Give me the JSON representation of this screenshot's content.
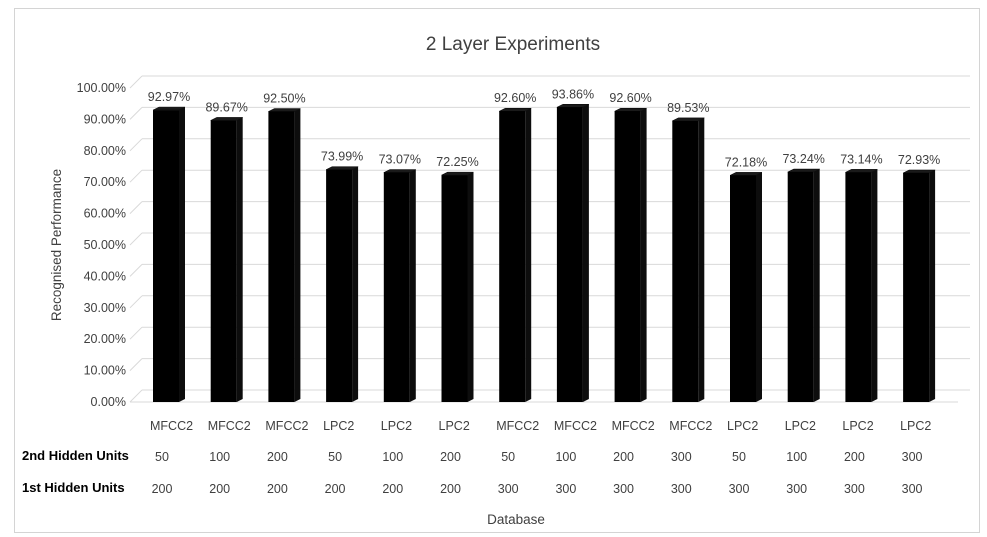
{
  "chart_data": {
    "type": "bar",
    "title": "2 Layer Experiments",
    "ylabel": "Recognised Performance",
    "xlabel": "Database",
    "ylim": [
      0,
      100
    ],
    "yticks": [
      "0.00%",
      "10.00%",
      "20.00%",
      "30.00%",
      "40.00%",
      "50.00%",
      "60.00%",
      "70.00%",
      "80.00%",
      "90.00%",
      "100.00%"
    ],
    "categories": [
      "MFCC2",
      "MFCC2",
      "MFCC2",
      "LPC2",
      "LPC2",
      "LPC2",
      "MFCC2",
      "MFCC2",
      "MFCC2",
      "MFCC2",
      "LPC2",
      "LPC2",
      "LPC2",
      "LPC2"
    ],
    "values": [
      92.97,
      89.67,
      92.5,
      73.99,
      73.07,
      72.25,
      92.6,
      93.86,
      92.6,
      89.53,
      72.18,
      73.24,
      73.14,
      72.93
    ],
    "data_labels": [
      "92.97%",
      "89.67%",
      "92.50%",
      "73.99%",
      "73.07%",
      "72.25%",
      "92.60%",
      "93.86%",
      "92.60%",
      "89.53%",
      "72.18%",
      "73.24%",
      "73.14%",
      "72.93%"
    ],
    "second_hidden_units_label": "2nd Hidden Units",
    "second_hidden_units": [
      "50",
      "100",
      "200",
      "50",
      "100",
      "200",
      "50",
      "100",
      "200",
      "300",
      "50",
      "100",
      "200",
      "300"
    ],
    "first_hidden_units_label": "1st Hidden Units",
    "first_hidden_units": [
      "200",
      "200",
      "200",
      "200",
      "200",
      "200",
      "300",
      "300",
      "300",
      "300",
      "300",
      "300",
      "300",
      "300"
    ],
    "grid": true,
    "bar_color": "#000000",
    "grid_color": "#d9d9d9"
  }
}
